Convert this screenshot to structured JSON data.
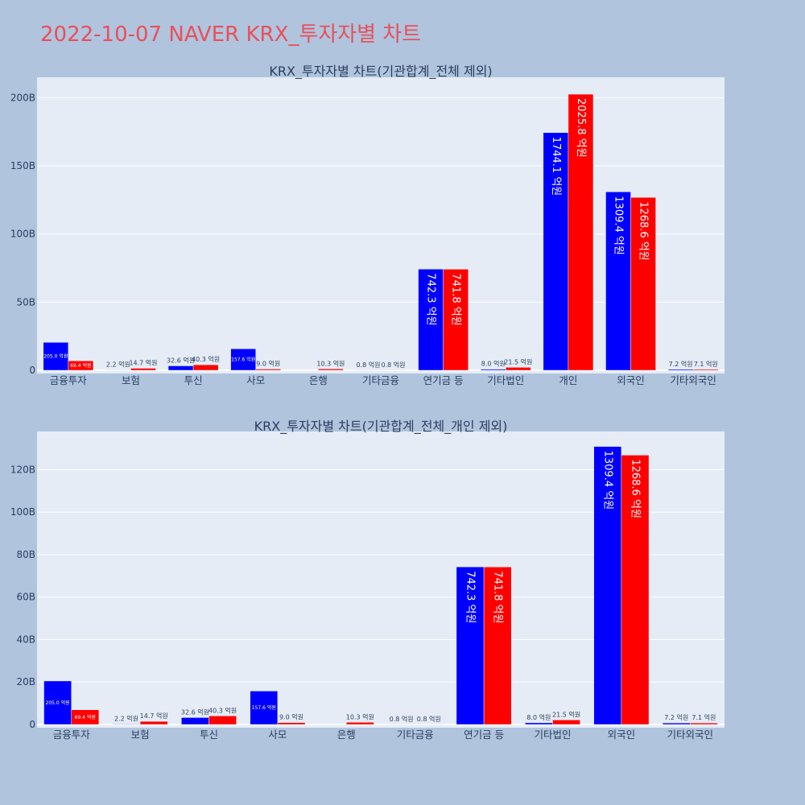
{
  "page": {
    "title": "2022-10-07 NAVER KRX_투자자별 차트"
  },
  "colors": {
    "sell": "#0000ff",
    "buy": "#ff0000",
    "plot_bg": "#e5ecf6",
    "page_bg": "#b0c4de",
    "title": "#e8505b",
    "text": "#2a3f5f"
  },
  "chart_data": [
    {
      "type": "bar",
      "title": "KRX_투자자별 차트(기관합계_전체 제외)",
      "categories": [
        "금융투자",
        "보험",
        "투신",
        "사모",
        "은행",
        "기타금융",
        "연기금 등",
        "기타법인",
        "개인",
        "외국인",
        "기타외국인"
      ],
      "series": [
        {
          "name": "blue",
          "color": "#0000ff",
          "values": [
            205.0,
            2.2,
            32.6,
            157.6,
            0,
            0.8,
            742.3,
            8.0,
            1744.1,
            1309.4,
            7.2
          ],
          "labels": [
            "205.0 억원",
            "2.2 억원",
            "32.6 억원",
            "157.6 억원",
            "",
            "0.8 억원",
            "742.3 억원",
            "8.0 억원",
            "1744.1 억원",
            "1309.4 억원",
            "7.2 억원"
          ]
        },
        {
          "name": "red",
          "color": "#ff0000",
          "values": [
            69.4,
            14.7,
            40.3,
            9.0,
            10.3,
            0.8,
            741.8,
            21.5,
            2025.8,
            1268.6,
            7.1
          ],
          "labels": [
            "69.4 억원",
            "14.7 억원",
            "40.3 억원",
            "9.0 억원",
            "10.3 억원",
            "0.8 억원",
            "741.8 억원",
            "21.5 억원",
            "2025.8 억원",
            "1268.6 억원",
            "7.1 억원"
          ]
        }
      ],
      "unit": "억원",
      "ylim": [
        0,
        2150
      ],
      "yticks": [
        0,
        500,
        1000,
        1500,
        2000
      ],
      "ytick_labels": [
        "0",
        "50B",
        "100B",
        "150B",
        "200B"
      ]
    },
    {
      "type": "bar",
      "title": "KRX_투자자별 차트(기관합계_전체_개인 제외)",
      "categories": [
        "금융투자",
        "보험",
        "투신",
        "사모",
        "은행",
        "기타금융",
        "연기금 등",
        "기타법인",
        "외국인",
        "기타외국인"
      ],
      "series": [
        {
          "name": "blue",
          "color": "#0000ff",
          "values": [
            205.0,
            2.2,
            32.6,
            157.6,
            0,
            0.8,
            742.3,
            8.0,
            1309.4,
            7.2
          ],
          "labels": [
            "205.0 억원",
            "2.2 억원",
            "32.6 억원",
            "157.6 억원",
            "",
            "0.8 억원",
            "742.3 억원",
            "8.0 억원",
            "1309.4 억원",
            "7.2 억원"
          ]
        },
        {
          "name": "red",
          "color": "#ff0000",
          "values": [
            69.4,
            14.7,
            40.3,
            9.0,
            10.3,
            0.8,
            741.8,
            21.5,
            1268.6,
            7.1
          ],
          "labels": [
            "69.4 억원",
            "14.7 억원",
            "40.3 억원",
            "9.0 억원",
            "10.3 억원",
            "0.8 억원",
            "741.8 억원",
            "21.5 억원",
            "1268.6 억원",
            "7.1 억원"
          ]
        }
      ],
      "unit": "억원",
      "ylim": [
        0,
        1380
      ],
      "yticks": [
        0,
        200,
        400,
        600,
        800,
        1000,
        1200
      ],
      "ytick_labels": [
        "0",
        "20B",
        "40B",
        "60B",
        "80B",
        "100B",
        "120B"
      ]
    }
  ]
}
